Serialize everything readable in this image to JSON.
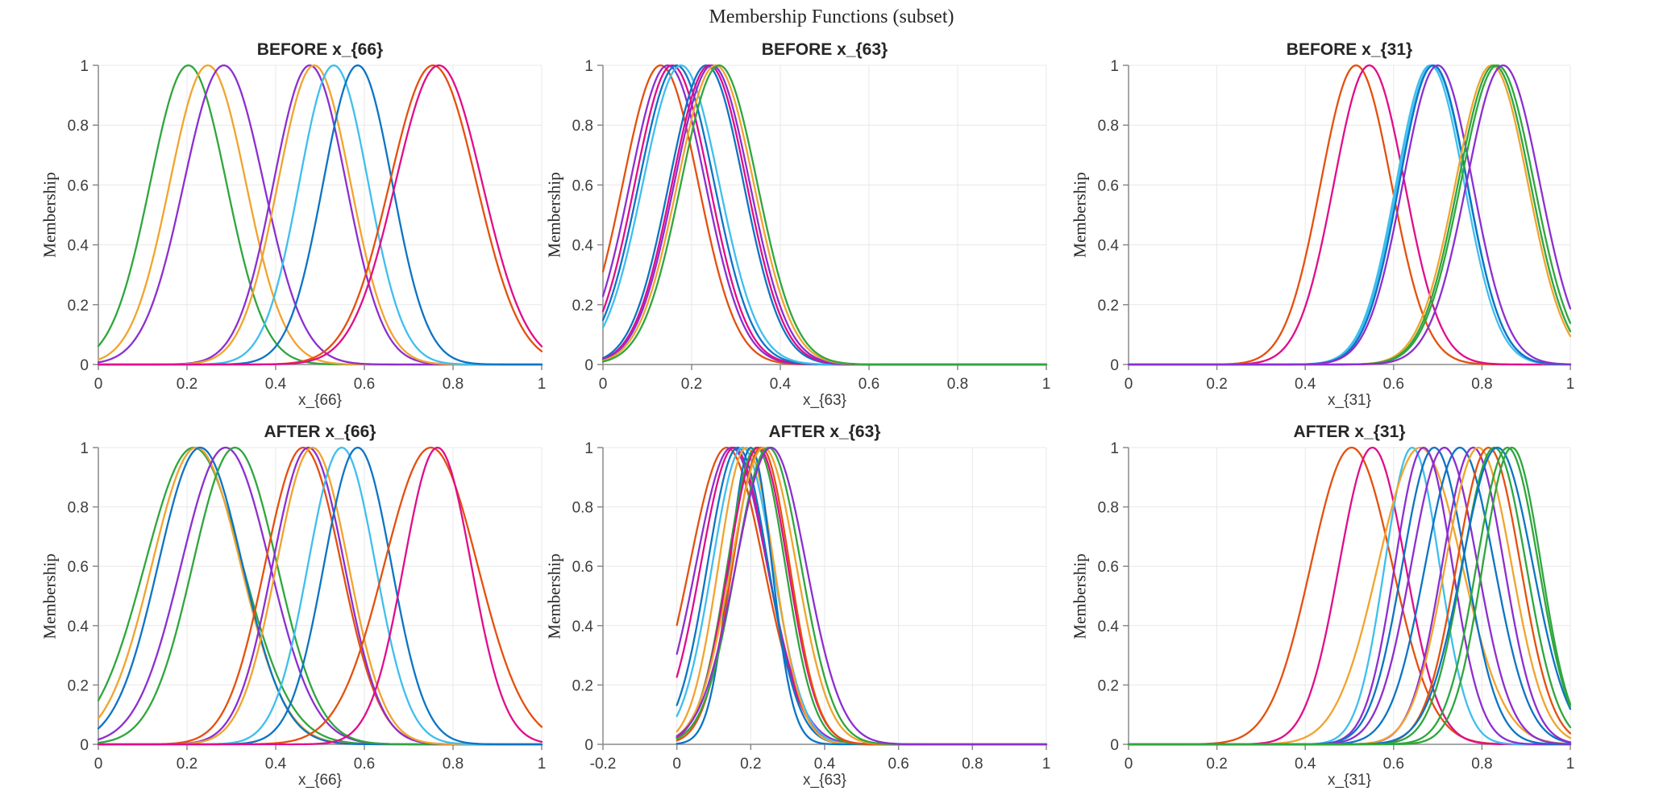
{
  "figure": {
    "main_title": "Membership Functions (subset)",
    "background": "#ffffff"
  },
  "style": {
    "axis_color": "#8a8a8a",
    "grid_color": "#e8e8e8",
    "tick_label_color": "#3c3c3c",
    "title_color": "#262626",
    "line_width": 2.3
  },
  "palette": {
    "green": "#2fa63d",
    "gold": "#f0a42e",
    "purple": "#8c2fd0",
    "cyan": "#3fbeee",
    "blue": "#0c74c5",
    "orange": "#e4500e",
    "magenta": "#e00d8a"
  },
  "chart_data": [
    {
      "type": "line",
      "curve_kind": "gaussian",
      "title": "BEFORE x_{66}",
      "xlabel": "x_{66}",
      "ylabel": "Membership",
      "xlim": [
        0,
        1
      ],
      "ylim": [
        0,
        1
      ],
      "grid": true,
      "data_xmin": 0,
      "xticks": [
        0,
        0.2,
        0.4,
        0.6,
        0.8,
        1
      ],
      "xtick_labels": [
        "0",
        "0.2",
        "0.4",
        "0.6",
        "0.8",
        "1"
      ],
      "yticks": [
        0,
        0.2,
        0.4,
        0.6,
        0.8,
        1
      ],
      "ytick_labels": [
        "0",
        "0.2",
        "0.4",
        "0.6",
        "0.8",
        "1"
      ],
      "curves": [
        {
          "color": "green",
          "center": 0.203,
          "sigma": 0.086
        },
        {
          "color": "gold",
          "center": 0.247,
          "sigma": 0.086
        },
        {
          "color": "purple",
          "center": 0.283,
          "sigma": 0.09
        },
        {
          "color": "purple",
          "center": 0.477,
          "sigma": 0.082
        },
        {
          "color": "gold",
          "center": 0.487,
          "sigma": 0.082
        },
        {
          "color": "cyan",
          "center": 0.531,
          "sigma": 0.078
        },
        {
          "color": "blue",
          "center": 0.585,
          "sigma": 0.078
        },
        {
          "color": "orange",
          "center": 0.755,
          "sigma": 0.098
        },
        {
          "color": "magenta",
          "center": 0.768,
          "sigma": 0.098
        }
      ]
    },
    {
      "type": "line",
      "curve_kind": "gaussian",
      "title": "BEFORE x_{63}",
      "xlabel": "x_{63}",
      "ylabel": "Membership",
      "xlim": [
        0,
        1
      ],
      "ylim": [
        0,
        1
      ],
      "grid": true,
      "data_xmin": 0,
      "xticks": [
        0,
        0.2,
        0.4,
        0.6,
        0.8,
        1
      ],
      "xtick_labels": [
        "0",
        "0.2",
        "0.4",
        "0.6",
        "0.8",
        "1"
      ],
      "yticks": [
        0,
        0.2,
        0.4,
        0.6,
        0.8,
        1
      ],
      "ytick_labels": [
        "0",
        "0.2",
        "0.4",
        "0.6",
        "0.8",
        "1"
      ],
      "curves": [
        {
          "color": "orange",
          "center": 0.13,
          "sigma": 0.085
        },
        {
          "color": "purple",
          "center": 0.146,
          "sigma": 0.085
        },
        {
          "color": "magenta",
          "center": 0.156,
          "sigma": 0.084
        },
        {
          "color": "blue",
          "center": 0.166,
          "sigma": 0.085
        },
        {
          "color": "cyan",
          "center": 0.176,
          "sigma": 0.086
        },
        {
          "color": "blue",
          "center": 0.233,
          "sigma": 0.084
        },
        {
          "color": "magenta",
          "center": 0.24,
          "sigma": 0.084
        },
        {
          "color": "purple",
          "center": 0.246,
          "sigma": 0.085
        },
        {
          "color": "gold",
          "center": 0.254,
          "sigma": 0.086
        },
        {
          "color": "green",
          "center": 0.262,
          "sigma": 0.086
        }
      ]
    },
    {
      "type": "line",
      "curve_kind": "gaussian",
      "title": "BEFORE x_{31}",
      "xlabel": "x_{31}",
      "ylabel": "Membership",
      "xlim": [
        0,
        1
      ],
      "ylim": [
        0,
        1
      ],
      "grid": true,
      "data_xmin": 0,
      "xticks": [
        0,
        0.2,
        0.4,
        0.6,
        0.8,
        1
      ],
      "xtick_labels": [
        "0",
        "0.2",
        "0.4",
        "0.6",
        "0.8",
        "1"
      ],
      "yticks": [
        0,
        0.2,
        0.4,
        0.6,
        0.8,
        1
      ],
      "ytick_labels": [
        "0",
        "0.2",
        "0.4",
        "0.6",
        "0.8",
        "1"
      ],
      "curves": [
        {
          "color": "orange",
          "center": 0.515,
          "sigma": 0.08
        },
        {
          "color": "magenta",
          "center": 0.545,
          "sigma": 0.08
        },
        {
          "color": "cyan",
          "center": 0.683,
          "sigma": 0.077
        },
        {
          "color": "cyan",
          "center": 0.688,
          "sigma": 0.078
        },
        {
          "color": "blue",
          "center": 0.69,
          "sigma": 0.077
        },
        {
          "color": "purple",
          "center": 0.7,
          "sigma": 0.079
        },
        {
          "color": "gold",
          "center": 0.822,
          "sigma": 0.082
        },
        {
          "color": "green",
          "center": 0.828,
          "sigma": 0.082
        },
        {
          "color": "green",
          "center": 0.835,
          "sigma": 0.083
        },
        {
          "color": "purple",
          "center": 0.848,
          "sigma": 0.083
        }
      ]
    },
    {
      "type": "line",
      "curve_kind": "gaussian",
      "title": "AFTER x_{66}",
      "xlabel": "x_{66}",
      "ylabel": "Membership",
      "xlim": [
        0,
        1
      ],
      "ylim": [
        0,
        1
      ],
      "grid": true,
      "data_xmin": 0,
      "xticks": [
        0,
        0.2,
        0.4,
        0.6,
        0.8,
        1
      ],
      "xtick_labels": [
        "0",
        "0.2",
        "0.4",
        "0.6",
        "0.8",
        "1"
      ],
      "yticks": [
        0,
        0.2,
        0.4,
        0.6,
        0.8,
        1
      ],
      "ytick_labels": [
        "0",
        "0.2",
        "0.4",
        "0.6",
        "0.8",
        "1"
      ],
      "curves": [
        {
          "color": "green",
          "center": 0.215,
          "sigma": 0.11
        },
        {
          "color": "gold",
          "center": 0.221,
          "sigma": 0.1
        },
        {
          "color": "blue",
          "center": 0.23,
          "sigma": 0.095
        },
        {
          "color": "purple",
          "center": 0.287,
          "sigma": 0.1
        },
        {
          "color": "green",
          "center": 0.308,
          "sigma": 0.095
        },
        {
          "color": "orange",
          "center": 0.462,
          "sigma": 0.086
        },
        {
          "color": "purple",
          "center": 0.474,
          "sigma": 0.081
        },
        {
          "color": "gold",
          "center": 0.483,
          "sigma": 0.081
        },
        {
          "color": "cyan",
          "center": 0.549,
          "sigma": 0.076
        },
        {
          "color": "blue",
          "center": 0.585,
          "sigma": 0.076
        },
        {
          "color": "orange",
          "center": 0.75,
          "sigma": 0.105
        },
        {
          "color": "magenta",
          "center": 0.765,
          "sigma": 0.076
        }
      ]
    },
    {
      "type": "line",
      "curve_kind": "gaussian",
      "title": "AFTER x_{63}",
      "xlabel": "x_{63}",
      "ylabel": "Membership",
      "xlim": [
        -0.2,
        1
      ],
      "ylim": [
        0,
        1
      ],
      "grid": true,
      "data_xmin": 0,
      "xticks": [
        -0.2,
        0,
        0.2,
        0.4,
        0.6,
        0.8,
        1
      ],
      "xtick_labels": [
        "-0.2",
        "0",
        "0.2",
        "0.4",
        "0.6",
        "0.8",
        "1"
      ],
      "yticks": [
        0,
        0.2,
        0.4,
        0.6,
        0.8,
        1
      ],
      "ytick_labels": [
        "0",
        "0.2",
        "0.4",
        "0.6",
        "0.8",
        "1"
      ],
      "curves": [
        {
          "color": "orange",
          "center": 0.135,
          "sigma": 0.1
        },
        {
          "color": "purple",
          "center": 0.148,
          "sigma": 0.096
        },
        {
          "color": "magenta",
          "center": 0.155,
          "sigma": 0.09
        },
        {
          "color": "blue",
          "center": 0.165,
          "sigma": 0.082
        },
        {
          "color": "cyan",
          "center": 0.178,
          "sigma": 0.082
        },
        {
          "color": "gold",
          "center": 0.188,
          "sigma": 0.075
        },
        {
          "color": "blue",
          "center": 0.2,
          "sigma": 0.057
        },
        {
          "color": "green",
          "center": 0.215,
          "sigma": 0.078
        },
        {
          "color": "magenta",
          "center": 0.22,
          "sigma": 0.08
        },
        {
          "color": "orange",
          "center": 0.228,
          "sigma": 0.077
        },
        {
          "color": "gold",
          "center": 0.235,
          "sigma": 0.088
        },
        {
          "color": "green",
          "center": 0.248,
          "sigma": 0.088
        },
        {
          "color": "purple",
          "center": 0.255,
          "sigma": 0.095
        }
      ]
    },
    {
      "type": "line",
      "curve_kind": "gaussian",
      "title": "AFTER x_{31}",
      "xlabel": "x_{31}",
      "ylabel": "Membership",
      "xlim": [
        0,
        1
      ],
      "ylim": [
        0,
        1
      ],
      "grid": true,
      "data_xmin": 0,
      "xticks": [
        0,
        0.2,
        0.4,
        0.6,
        0.8,
        1
      ],
      "xtick_labels": [
        "0",
        "0.2",
        "0.4",
        "0.6",
        "0.8",
        "1"
      ],
      "yticks": [
        0,
        0.2,
        0.4,
        0.6,
        0.8,
        1
      ],
      "ytick_labels": [
        "0",
        "0.2",
        "0.4",
        "0.6",
        "0.8",
        "1"
      ],
      "curves": [
        {
          "color": "orange",
          "center": 0.505,
          "sigma": 0.092
        },
        {
          "color": "magenta",
          "center": 0.552,
          "sigma": 0.075
        },
        {
          "color": "cyan",
          "center": 0.642,
          "sigma": 0.062
        },
        {
          "color": "gold",
          "center": 0.66,
          "sigma": 0.095
        },
        {
          "color": "purple",
          "center": 0.668,
          "sigma": 0.065
        },
        {
          "color": "blue",
          "center": 0.692,
          "sigma": 0.072
        },
        {
          "color": "purple",
          "center": 0.715,
          "sigma": 0.075
        },
        {
          "color": "blue",
          "center": 0.75,
          "sigma": 0.078
        },
        {
          "color": "purple",
          "center": 0.78,
          "sigma": 0.07
        },
        {
          "color": "gold",
          "center": 0.792,
          "sigma": 0.075
        },
        {
          "color": "orange",
          "center": 0.815,
          "sigma": 0.072
        },
        {
          "color": "green",
          "center": 0.828,
          "sigma": 0.072
        },
        {
          "color": "blue",
          "center": 0.835,
          "sigma": 0.08
        },
        {
          "color": "green",
          "center": 0.858,
          "sigma": 0.07
        },
        {
          "color": "green",
          "center": 0.868,
          "sigma": 0.066
        }
      ]
    }
  ]
}
